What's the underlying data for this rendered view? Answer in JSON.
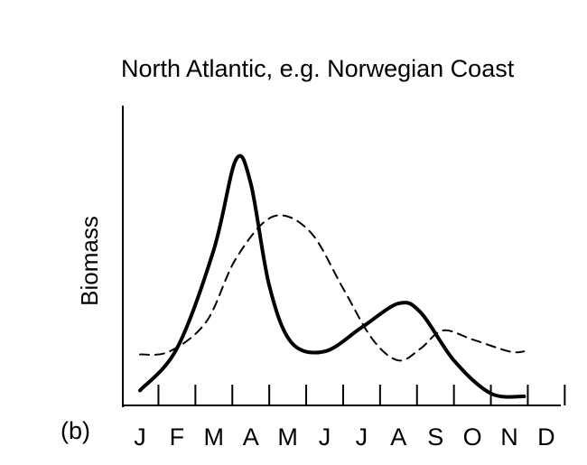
{
  "chart_data": {
    "type": "line",
    "title": "North Atlantic, e.g. Norwegian Coast",
    "ylabel": "Biomass",
    "xlabel": "",
    "panel_label": "(b)",
    "categories": [
      "J",
      "F",
      "M",
      "A",
      "M",
      "J",
      "J",
      "A",
      "S",
      "O",
      "N",
      "D"
    ],
    "ylim": [
      0,
      100
    ],
    "grid": false,
    "legend": "none",
    "series": [
      {
        "style": "solid",
        "color": "#000000",
        "points": [
          [
            0.0,
            5
          ],
          [
            1.0,
            19
          ],
          [
            2.0,
            52
          ],
          [
            2.6,
            82
          ],
          [
            3.0,
            74
          ],
          [
            3.5,
            40
          ],
          [
            4.1,
            21
          ],
          [
            5.0,
            18
          ],
          [
            6.0,
            26
          ],
          [
            7.0,
            34
          ],
          [
            7.6,
            31
          ],
          [
            8.5,
            15
          ],
          [
            9.5,
            4
          ],
          [
            10.4,
            3
          ]
        ]
      },
      {
        "style": "dashed",
        "color": "#000000",
        "points": [
          [
            0.0,
            17
          ],
          [
            0.8,
            18
          ],
          [
            1.8,
            28
          ],
          [
            2.6,
            49
          ],
          [
            3.6,
            63
          ],
          [
            4.6,
            58
          ],
          [
            5.5,
            39
          ],
          [
            6.3,
            22
          ],
          [
            7.0,
            15
          ],
          [
            7.6,
            19
          ],
          [
            8.2,
            25
          ],
          [
            9.0,
            22
          ],
          [
            10.0,
            18
          ],
          [
            10.4,
            18
          ]
        ]
      }
    ]
  }
}
